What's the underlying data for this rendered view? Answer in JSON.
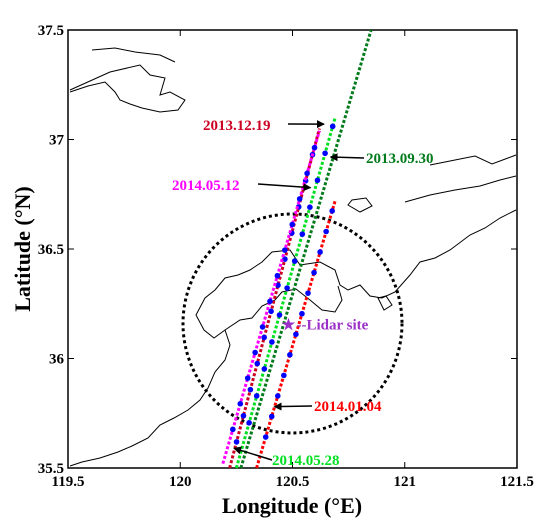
{
  "map": {
    "xlabel": "Longitude (°E)",
    "ylabel": "Latitude (°N)",
    "xlim": [
      119.5,
      121.5
    ],
    "ylim": [
      35.5,
      37.5
    ],
    "xticks": [
      119.5,
      120,
      120.5,
      121,
      121.5
    ],
    "yticks": [
      35.5,
      36,
      36.5,
      37,
      37.5
    ],
    "xtick_labels": [
      "119.5",
      "120",
      "120.5",
      "121",
      "121.5"
    ],
    "ytick_labels": [
      "35.5",
      "36",
      "36.5",
      "37",
      "37.5"
    ],
    "lidar_site": {
      "lon": 120.5,
      "lat": 36.16,
      "label": "--Lidar site",
      "color": "#9b30c8"
    },
    "circle": {
      "center_lon": 120.5,
      "center_lat": 36.16,
      "radius_lat": 0.5,
      "color": "#000000"
    },
    "tracks": [
      {
        "date": "2013.12.19",
        "color": "#cc0022",
        "points": [
          [
            120.22,
            35.5
          ],
          [
            120.62,
            37.05
          ]
        ]
      },
      {
        "date": "2013.09.30",
        "color": "#007a1a",
        "points": [
          [
            120.27,
            35.5
          ],
          [
            120.85,
            37.5
          ]
        ]
      },
      {
        "date": "2014.05.12",
        "color": "#ff00ff",
        "points": [
          [
            120.19,
            35.52
          ],
          [
            120.62,
            37.04
          ]
        ]
      },
      {
        "date": "2014.01.04",
        "color": "#ff0000",
        "points": [
          [
            120.34,
            35.5
          ],
          [
            120.69,
            36.72
          ]
        ]
      },
      {
        "date": "2014.05.28",
        "color": "#00e020",
        "points": [
          [
            120.25,
            35.5
          ],
          [
            120.69,
            37.1
          ]
        ]
      }
    ],
    "blue_points_color": "#0000ff",
    "annotations": [
      {
        "text": "2013.12.19",
        "color": "#cc0022",
        "arrow_to": [
          120.64,
          37.07
        ]
      },
      {
        "text": "2013.09.30",
        "color": "#007a1a",
        "arrow_to": [
          120.67,
          36.92
        ]
      },
      {
        "text": "2014.05.12",
        "color": "#ff00ff",
        "arrow_to": [
          120.58,
          36.78
        ]
      },
      {
        "text": "2014.01.04",
        "color": "#ff0000",
        "arrow_to": [
          120.42,
          35.78
        ]
      },
      {
        "text": "2014.05.28",
        "color": "#00e020",
        "arrow_to": [
          120.24,
          35.59
        ]
      }
    ]
  }
}
